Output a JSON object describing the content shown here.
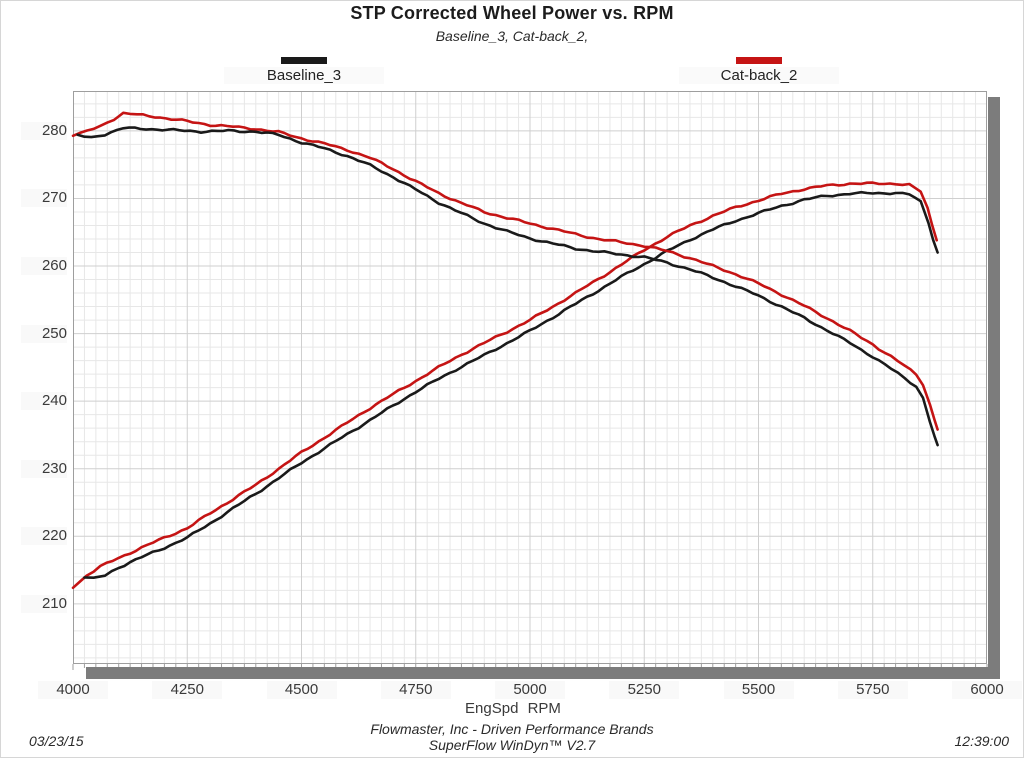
{
  "header": {
    "title": "STP Corrected Wheel Power vs. RPM",
    "subtitle": "Baseline_3, Cat-back_2,"
  },
  "legend": [
    {
      "label": "Baseline_3",
      "color": "#1a1a1a"
    },
    {
      "label": "Cat-back_2",
      "color": "#c51414"
    }
  ],
  "axis": {
    "x_label": "EngSpd RPM"
  },
  "footer": {
    "line1": "Flowmaster, Inc - Driven Performance Brands",
    "line2": "SuperFlow WinDyn™ V2.7",
    "date": "03/23/15",
    "time": "12:39:00"
  },
  "chart_data": {
    "type": "line",
    "title": "STP Corrected Wheel Power vs. RPM",
    "subtitle": "Baseline_3, Cat-back_2,",
    "xlabel": "EngSpd RPM",
    "ylabel": "",
    "xlim": [
      4000,
      6000
    ],
    "ylim": [
      201.1,
      285.9
    ],
    "x_ticks": [
      4000,
      4250,
      4500,
      4750,
      5000,
      5250,
      5500,
      5750,
      6000
    ],
    "y_ticks": [
      210,
      220,
      230,
      240,
      250,
      260,
      270,
      280
    ],
    "x_minor_step": 25,
    "y_minor_step": 2,
    "grid": true,
    "legend_position": "top",
    "colors": {
      "grid_minor": "#e7e7e7",
      "grid_major": "#cfcfcf",
      "plot_border": "#9e9e9e",
      "shadow": "#7c7c7c"
    },
    "series": [
      {
        "name": "Cat-back_2 rising curve",
        "color": "#c51414",
        "points": [
          [
            4000,
            212.5
          ],
          [
            4030,
            214.2
          ],
          [
            4060,
            215.5
          ],
          [
            4100,
            216.8
          ],
          [
            4150,
            218.3
          ],
          [
            4200,
            219.8
          ],
          [
            4250,
            221.2
          ],
          [
            4300,
            223.4
          ],
          [
            4350,
            225.5
          ],
          [
            4400,
            227.6
          ],
          [
            4450,
            230.0
          ],
          [
            4500,
            232.4
          ],
          [
            4550,
            234.6
          ],
          [
            4600,
            236.8
          ],
          [
            4650,
            239.0
          ],
          [
            4700,
            241.0
          ],
          [
            4750,
            243.0
          ],
          [
            4800,
            245.0
          ],
          [
            4850,
            246.9
          ],
          [
            4900,
            248.6
          ],
          [
            4950,
            250.3
          ],
          [
            5000,
            252.0
          ],
          [
            5050,
            254.0
          ],
          [
            5100,
            256.0
          ],
          [
            5150,
            258.1
          ],
          [
            5200,
            260.2
          ],
          [
            5250,
            262.4
          ],
          [
            5300,
            264.3
          ],
          [
            5350,
            266.0
          ],
          [
            5400,
            267.4
          ],
          [
            5450,
            268.7
          ],
          [
            5500,
            269.7
          ],
          [
            5550,
            270.7
          ],
          [
            5600,
            271.4
          ],
          [
            5650,
            271.9
          ],
          [
            5700,
            272.2
          ],
          [
            5750,
            272.2
          ],
          [
            5800,
            272.2
          ],
          [
            5830,
            272.0
          ],
          [
            5855,
            271.0
          ],
          [
            5870,
            268.5
          ],
          [
            5880,
            266.0
          ],
          [
            5890,
            263.8
          ]
        ]
      },
      {
        "name": "Baseline_3 rising curve",
        "color": "#1a1a1a",
        "points": [
          [
            4025,
            214.0
          ],
          [
            4045,
            213.7
          ],
          [
            4070,
            214.2
          ],
          [
            4100,
            215.4
          ],
          [
            4150,
            216.9
          ],
          [
            4200,
            218.3
          ],
          [
            4250,
            219.8
          ],
          [
            4300,
            221.9
          ],
          [
            4350,
            224.1
          ],
          [
            4400,
            226.3
          ],
          [
            4450,
            228.6
          ],
          [
            4500,
            230.9
          ],
          [
            4550,
            233.0
          ],
          [
            4600,
            235.1
          ],
          [
            4650,
            237.2
          ],
          [
            4700,
            239.3
          ],
          [
            4750,
            241.4
          ],
          [
            4800,
            243.3
          ],
          [
            4850,
            245.1
          ],
          [
            4900,
            246.8
          ],
          [
            4950,
            248.6
          ],
          [
            5000,
            250.4
          ],
          [
            5050,
            252.4
          ],
          [
            5100,
            254.4
          ],
          [
            5150,
            256.4
          ],
          [
            5200,
            258.4
          ],
          [
            5250,
            260.3
          ],
          [
            5300,
            262.2
          ],
          [
            5350,
            263.9
          ],
          [
            5400,
            265.4
          ],
          [
            5450,
            266.7
          ],
          [
            5500,
            267.8
          ],
          [
            5550,
            268.9
          ],
          [
            5600,
            269.8
          ],
          [
            5650,
            270.4
          ],
          [
            5700,
            270.7
          ],
          [
            5750,
            270.8
          ],
          [
            5800,
            270.8
          ],
          [
            5830,
            270.6
          ],
          [
            5855,
            269.5
          ],
          [
            5872,
            266.5
          ],
          [
            5882,
            264.0
          ],
          [
            5892,
            262.0
          ]
        ]
      },
      {
        "name": "Cat-back_2 falling curve",
        "color": "#c51414",
        "points": [
          [
            4000,
            279.4
          ],
          [
            4030,
            279.9
          ],
          [
            4060,
            280.7
          ],
          [
            4090,
            281.8
          ],
          [
            4110,
            282.6
          ],
          [
            4140,
            282.4
          ],
          [
            4180,
            282.1
          ],
          [
            4250,
            281.4
          ],
          [
            4300,
            280.9
          ],
          [
            4350,
            280.6
          ],
          [
            4400,
            280.3
          ],
          [
            4450,
            279.8
          ],
          [
            4500,
            278.9
          ],
          [
            4550,
            278.1
          ],
          [
            4600,
            277.2
          ],
          [
            4650,
            276.0
          ],
          [
            4700,
            274.4
          ],
          [
            4750,
            272.5
          ],
          [
            4800,
            270.8
          ],
          [
            4850,
            269.3
          ],
          [
            4900,
            268.0
          ],
          [
            4950,
            267.1
          ],
          [
            5000,
            266.3
          ],
          [
            5050,
            265.5
          ],
          [
            5100,
            264.7
          ],
          [
            5150,
            264.0
          ],
          [
            5200,
            263.5
          ],
          [
            5250,
            263.0
          ],
          [
            5300,
            262.2
          ],
          [
            5350,
            261.2
          ],
          [
            5400,
            260.0
          ],
          [
            5450,
            258.8
          ],
          [
            5500,
            257.4
          ],
          [
            5550,
            255.8
          ],
          [
            5600,
            254.1
          ],
          [
            5650,
            252.3
          ],
          [
            5700,
            250.4
          ],
          [
            5750,
            248.4
          ],
          [
            5790,
            246.6
          ],
          [
            5820,
            245.2
          ],
          [
            5845,
            244.0
          ],
          [
            5860,
            242.5
          ],
          [
            5875,
            239.5
          ],
          [
            5885,
            237.3
          ],
          [
            5892,
            235.8
          ]
        ]
      },
      {
        "name": "Baseline_3 falling curve",
        "color": "#1a1a1a",
        "points": [
          [
            4010,
            279.3
          ],
          [
            4040,
            279.0
          ],
          [
            4070,
            279.5
          ],
          [
            4110,
            280.4
          ],
          [
            4160,
            280.3
          ],
          [
            4220,
            280.1
          ],
          [
            4280,
            279.9
          ],
          [
            4340,
            280.0
          ],
          [
            4400,
            279.9
          ],
          [
            4450,
            279.4
          ],
          [
            4500,
            278.3
          ],
          [
            4550,
            277.4
          ],
          [
            4600,
            276.3
          ],
          [
            4650,
            274.9
          ],
          [
            4700,
            273.2
          ],
          [
            4750,
            271.3
          ],
          [
            4800,
            269.4
          ],
          [
            4850,
            267.8
          ],
          [
            4900,
            266.3
          ],
          [
            4950,
            265.1
          ],
          [
            5000,
            264.1
          ],
          [
            5050,
            263.3
          ],
          [
            5100,
            262.6
          ],
          [
            5150,
            262.1
          ],
          [
            5200,
            261.7
          ],
          [
            5250,
            261.3
          ],
          [
            5300,
            260.5
          ],
          [
            5350,
            259.5
          ],
          [
            5400,
            258.3
          ],
          [
            5450,
            257.0
          ],
          [
            5500,
            255.6
          ],
          [
            5550,
            254.0
          ],
          [
            5600,
            252.3
          ],
          [
            5650,
            250.5
          ],
          [
            5700,
            248.6
          ],
          [
            5750,
            246.6
          ],
          [
            5790,
            244.8
          ],
          [
            5820,
            243.4
          ],
          [
            5845,
            242.2
          ],
          [
            5860,
            240.5
          ],
          [
            5875,
            237.0
          ],
          [
            5885,
            234.8
          ],
          [
            5892,
            233.5
          ]
        ]
      }
    ]
  }
}
